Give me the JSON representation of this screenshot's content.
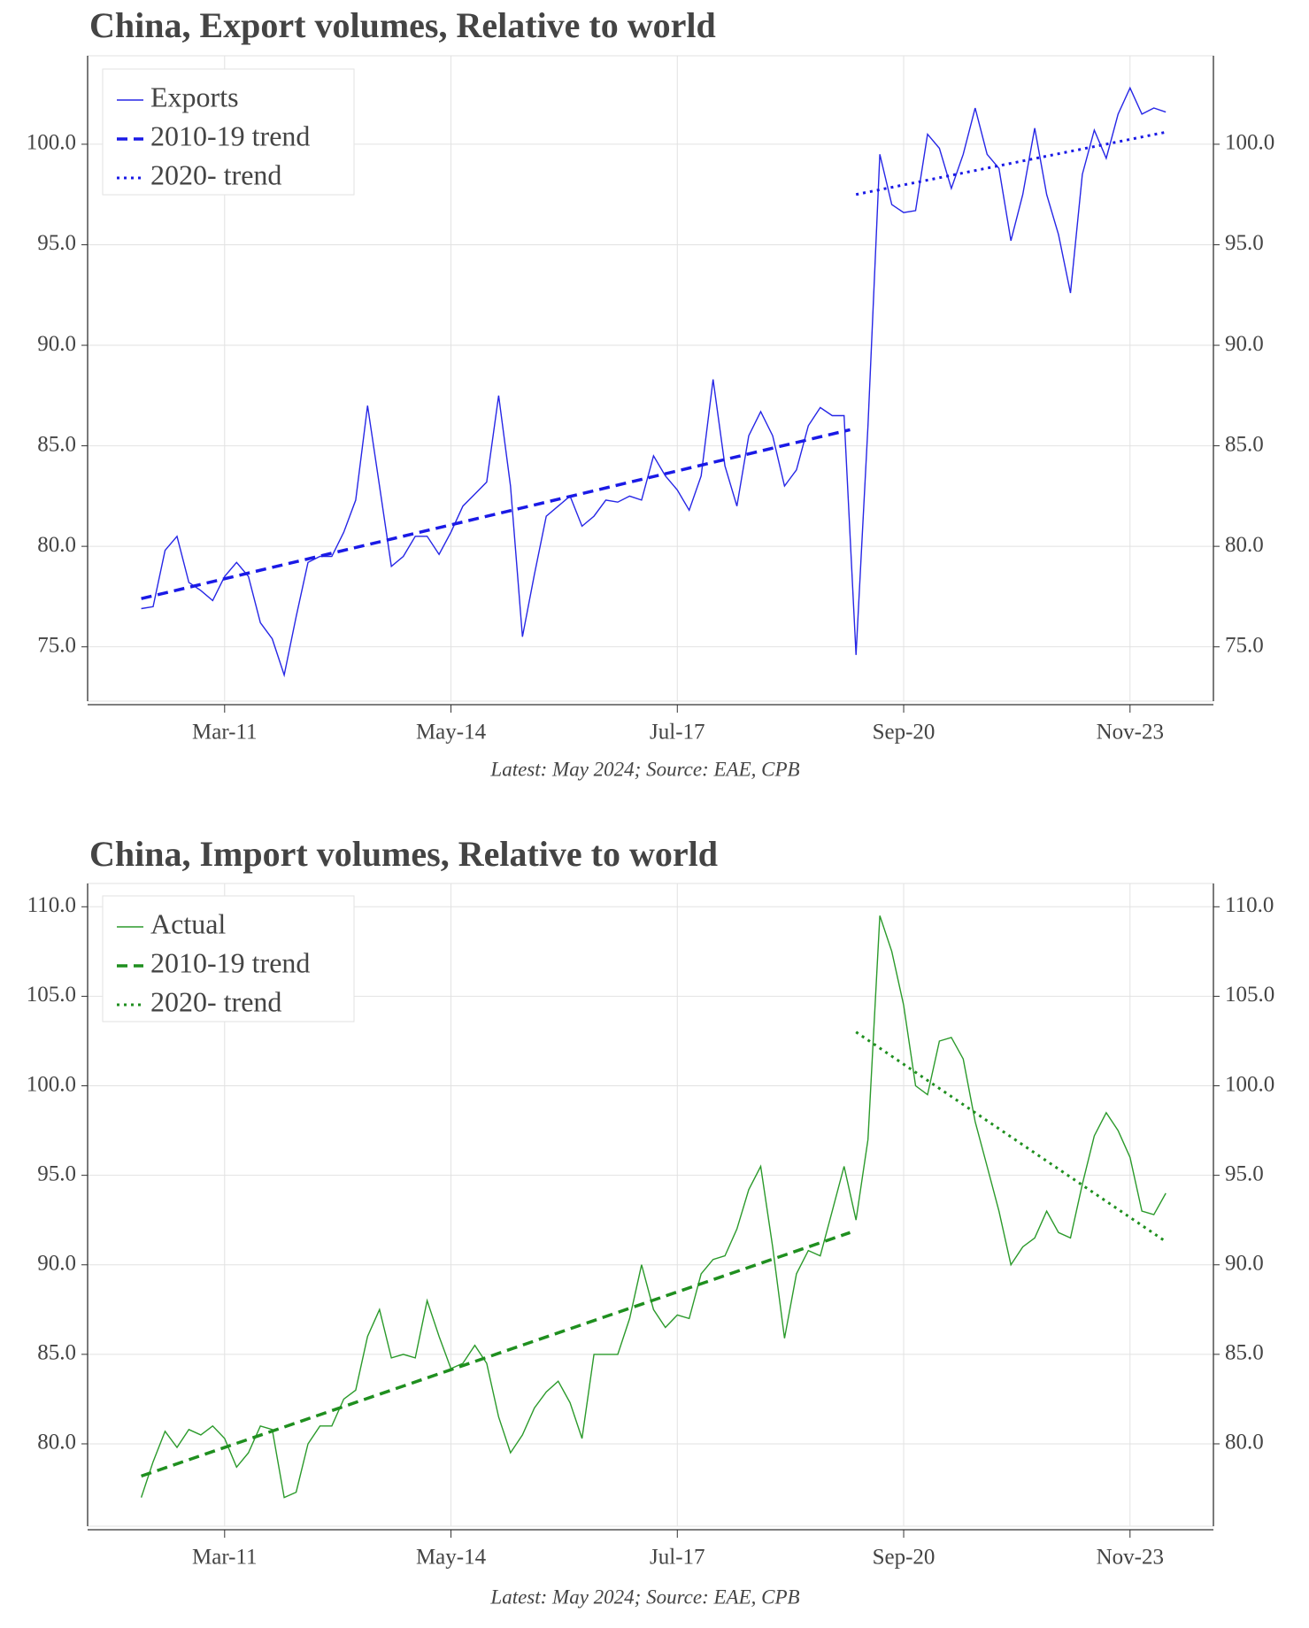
{
  "chart_data": [
    {
      "type": "line",
      "title": "China, Export volumes, Relative to world",
      "source": "Latest: May 2024; Source: EAE, CPB",
      "legend": "upper left",
      "grid": true,
      "xlim": [
        "2009-04",
        "2025-01"
      ],
      "xticks": [
        {
          "value": "2011-03",
          "label": "Mar-11"
        },
        {
          "value": "2014-05",
          "label": "May-14"
        },
        {
          "value": "2017-07",
          "label": "Jul-17"
        },
        {
          "value": "2020-09",
          "label": "Sep-20"
        },
        {
          "value": "2023-11",
          "label": "Nov-23"
        }
      ],
      "ylim": [
        72.3,
        104.4
      ],
      "yticks": [
        {
          "value": 75,
          "label": "75.0"
        },
        {
          "value": 80,
          "label": "80.0"
        },
        {
          "value": 85,
          "label": "85.0"
        },
        {
          "value": 90,
          "label": "90.0"
        },
        {
          "value": 95,
          "label": "95.0"
        },
        {
          "value": 100,
          "label": "100.0"
        }
      ],
      "x": [
        "2010-01",
        "2010-03",
        "2010-05",
        "2010-07",
        "2010-09",
        "2010-11",
        "2011-01",
        "2011-03",
        "2011-05",
        "2011-07",
        "2011-09",
        "2011-11",
        "2012-01",
        "2012-03",
        "2012-05",
        "2012-07",
        "2012-09",
        "2012-11",
        "2013-01",
        "2013-03",
        "2013-05",
        "2013-07",
        "2013-09",
        "2013-11",
        "2014-01",
        "2014-03",
        "2014-05",
        "2014-07",
        "2014-09",
        "2014-11",
        "2015-01",
        "2015-03",
        "2015-05",
        "2015-07",
        "2015-09",
        "2015-11",
        "2016-01",
        "2016-03",
        "2016-05",
        "2016-07",
        "2016-09",
        "2016-11",
        "2017-01",
        "2017-03",
        "2017-05",
        "2017-07",
        "2017-09",
        "2017-11",
        "2018-01",
        "2018-03",
        "2018-05",
        "2018-07",
        "2018-09",
        "2018-11",
        "2019-01",
        "2019-03",
        "2019-05",
        "2019-07",
        "2019-09",
        "2019-11",
        "2020-01",
        "2020-03",
        "2020-05",
        "2020-07",
        "2020-09",
        "2020-11",
        "2021-01",
        "2021-03",
        "2021-05",
        "2021-07",
        "2021-09",
        "2021-11",
        "2022-01",
        "2022-03",
        "2022-05",
        "2022-07",
        "2022-09",
        "2022-11",
        "2023-01",
        "2023-03",
        "2023-05",
        "2023-07",
        "2023-09",
        "2023-11",
        "2024-01",
        "2024-03",
        "2024-05"
      ],
      "series": [
        {
          "name": "Exports",
          "color": "#2626e6",
          "style": "solid",
          "values": [
            76.9,
            77.0,
            79.8,
            80.5,
            78.2,
            77.8,
            77.3,
            78.5,
            79.2,
            78.5,
            76.2,
            75.4,
            73.6,
            76.5,
            79.2,
            79.5,
            79.5,
            80.7,
            82.3,
            87.0,
            83.0,
            79.0,
            79.5,
            80.5,
            80.5,
            79.6,
            80.7,
            82.0,
            82.6,
            83.2,
            87.5,
            83.0,
            75.5,
            78.6,
            81.5,
            82.0,
            82.5,
            81.0,
            81.5,
            82.3,
            82.2,
            82.5,
            82.3,
            84.5,
            83.5,
            82.8,
            81.8,
            83.5,
            88.3,
            84.0,
            82.0,
            85.5,
            86.7,
            85.5,
            83.0,
            83.8,
            86.0,
            86.9,
            86.5,
            86.5,
            74.6,
            86.0,
            99.5,
            97.0,
            96.6,
            96.7,
            100.5,
            99.8,
            97.8,
            99.5,
            101.8,
            99.5,
            98.8,
            95.2,
            97.5,
            100.8,
            97.5,
            95.5,
            92.6,
            98.5,
            100.7,
            99.3,
            101.5,
            102.8,
            101.5,
            101.8,
            101.6
          ]
        },
        {
          "name": "2010-19 trend",
          "color": "#1a1ae6",
          "style": "dashed",
          "x": [
            "2010-01",
            "2019-12"
          ],
          "values": [
            77.4,
            85.8
          ]
        },
        {
          "name": "2020- trend",
          "color": "#1a1ae6",
          "style": "dotted",
          "x": [
            "2020-01",
            "2024-05"
          ],
          "values": [
            97.5,
            100.6
          ]
        }
      ]
    },
    {
      "type": "line",
      "title": "China, Import volumes, Relative to world",
      "source": "Latest: May 2024; Source: EAE, CPB",
      "legend": "upper left",
      "grid": true,
      "xlim": [
        "2009-04",
        "2025-01"
      ],
      "xticks": [
        {
          "value": "2011-03",
          "label": "Mar-11"
        },
        {
          "value": "2014-05",
          "label": "May-14"
        },
        {
          "value": "2017-07",
          "label": "Jul-17"
        },
        {
          "value": "2020-09",
          "label": "Sep-20"
        },
        {
          "value": "2023-11",
          "label": "Nov-23"
        }
      ],
      "ylim": [
        75.4,
        111.3
      ],
      "yticks": [
        {
          "value": 80,
          "label": "80.0"
        },
        {
          "value": 85,
          "label": "85.0"
        },
        {
          "value": 90,
          "label": "90.0"
        },
        {
          "value": 95,
          "label": "95.0"
        },
        {
          "value": 100,
          "label": "100.0"
        },
        {
          "value": 105,
          "label": "105.0"
        },
        {
          "value": 110,
          "label": "110.0"
        }
      ],
      "x": [
        "2010-01",
        "2010-03",
        "2010-05",
        "2010-07",
        "2010-09",
        "2010-11",
        "2011-01",
        "2011-03",
        "2011-05",
        "2011-07",
        "2011-09",
        "2011-11",
        "2012-01",
        "2012-03",
        "2012-05",
        "2012-07",
        "2012-09",
        "2012-11",
        "2013-01",
        "2013-03",
        "2013-05",
        "2013-07",
        "2013-09",
        "2013-11",
        "2014-01",
        "2014-03",
        "2014-05",
        "2014-07",
        "2014-09",
        "2014-11",
        "2015-01",
        "2015-03",
        "2015-05",
        "2015-07",
        "2015-09",
        "2015-11",
        "2016-01",
        "2016-03",
        "2016-05",
        "2016-07",
        "2016-09",
        "2016-11",
        "2017-01",
        "2017-03",
        "2017-05",
        "2017-07",
        "2017-09",
        "2017-11",
        "2018-01",
        "2018-03",
        "2018-05",
        "2018-07",
        "2018-09",
        "2018-11",
        "2019-01",
        "2019-03",
        "2019-05",
        "2019-07",
        "2019-09",
        "2019-11",
        "2020-01",
        "2020-03",
        "2020-05",
        "2020-07",
        "2020-09",
        "2020-11",
        "2021-01",
        "2021-03",
        "2021-05",
        "2021-07",
        "2021-09",
        "2021-11",
        "2022-01",
        "2022-03",
        "2022-05",
        "2022-07",
        "2022-09",
        "2022-11",
        "2023-01",
        "2023-03",
        "2023-05",
        "2023-07",
        "2023-09",
        "2023-11",
        "2024-01",
        "2024-03",
        "2024-05"
      ],
      "series": [
        {
          "name": "Actual",
          "color": "#2b9a2b",
          "style": "solid",
          "values": [
            77.0,
            79.0,
            80.7,
            79.8,
            80.8,
            80.5,
            81.0,
            80.3,
            78.7,
            79.5,
            81.0,
            80.8,
            77.0,
            77.3,
            80.0,
            81.0,
            81.0,
            82.5,
            83.0,
            86.0,
            87.5,
            84.8,
            85.0,
            84.8,
            88.0,
            86.0,
            84.2,
            84.5,
            85.5,
            84.5,
            81.5,
            79.5,
            80.5,
            82.0,
            82.9,
            83.5,
            82.3,
            80.3,
            85.0,
            85.0,
            85.0,
            87.0,
            90.0,
            87.5,
            86.5,
            87.2,
            87.0,
            89.5,
            90.3,
            90.5,
            92.0,
            94.2,
            95.5,
            91.0,
            85.9,
            89.5,
            90.8,
            90.5,
            93.0,
            95.5,
            92.5,
            97.0,
            109.5,
            107.5,
            104.5,
            100.0,
            99.5,
            102.5,
            102.7,
            101.5,
            98.0,
            95.5,
            93.0,
            90.0,
            91.0,
            91.5,
            93.0,
            91.8,
            91.5,
            94.5,
            97.2,
            98.5,
            97.5,
            96.0,
            93.0,
            92.8,
            94.0
          ]
        },
        {
          "name": "2010-19 trend",
          "color": "#1f8f1f",
          "style": "dashed",
          "x": [
            "2010-01",
            "2019-12"
          ],
          "values": [
            78.2,
            91.8
          ]
        },
        {
          "name": "2020- trend",
          "color": "#1f8f1f",
          "style": "dotted",
          "x": [
            "2020-01",
            "2024-05"
          ],
          "values": [
            103.0,
            91.3
          ]
        }
      ]
    }
  ]
}
